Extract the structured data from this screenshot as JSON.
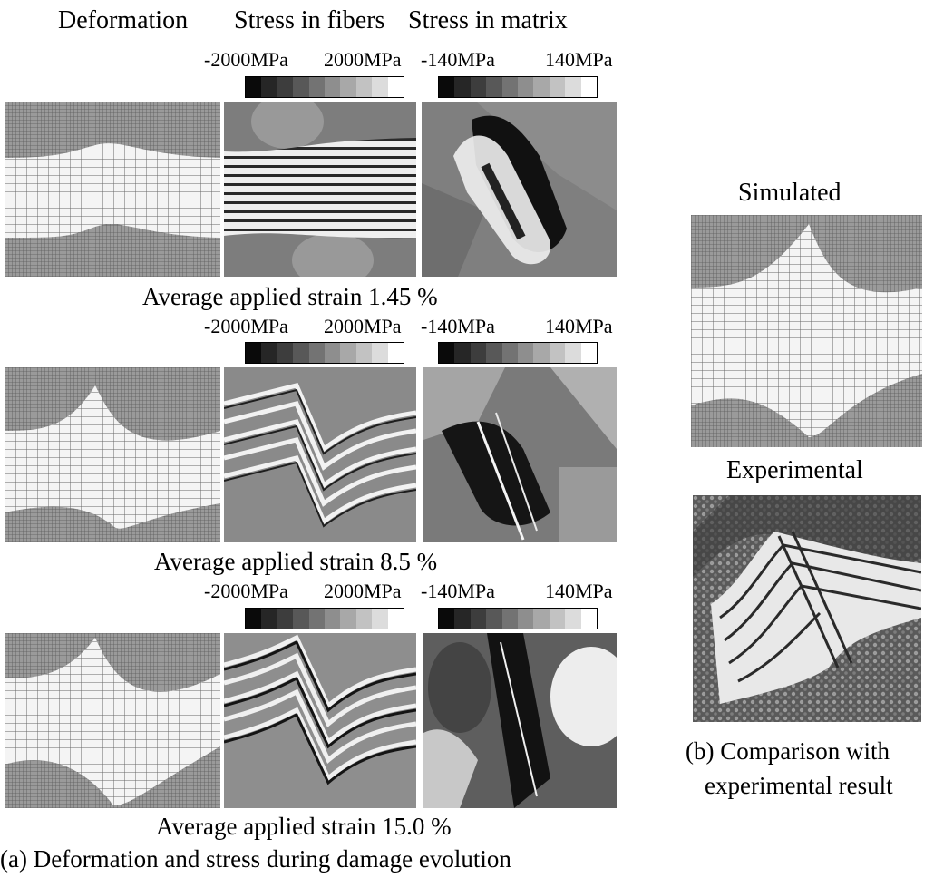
{
  "headers": [
    "Deformation",
    "Stress in fibers",
    "Stress in matrix"
  ],
  "scale_labels": {
    "fibers_min": "-2000MPa",
    "fibers_max": "2000MPa",
    "matrix_min": "-140MPa",
    "matrix_max": "140MPa"
  },
  "colorbar_shades": [
    "#0a0a0a",
    "#262626",
    "#3d3d3d",
    "#585858",
    "#737373",
    "#8e8e8e",
    "#a8a8a8",
    "#c2c2c2",
    "#dcdcdc",
    "#ffffff"
  ],
  "rows": [
    {
      "strain_label": "Average applied strain 1.45 %"
    },
    {
      "strain_label": "Average applied strain 8.5 %"
    },
    {
      "strain_label": "Average applied strain 15.0 %"
    }
  ],
  "caption_a": "(a) Deformation and stress during damage evolution",
  "comparison": {
    "simulated_label": "Simulated",
    "experimental_label": "Experimental",
    "caption_b_line1": "(b) Comparison with",
    "caption_b_line2": "experimental result"
  }
}
